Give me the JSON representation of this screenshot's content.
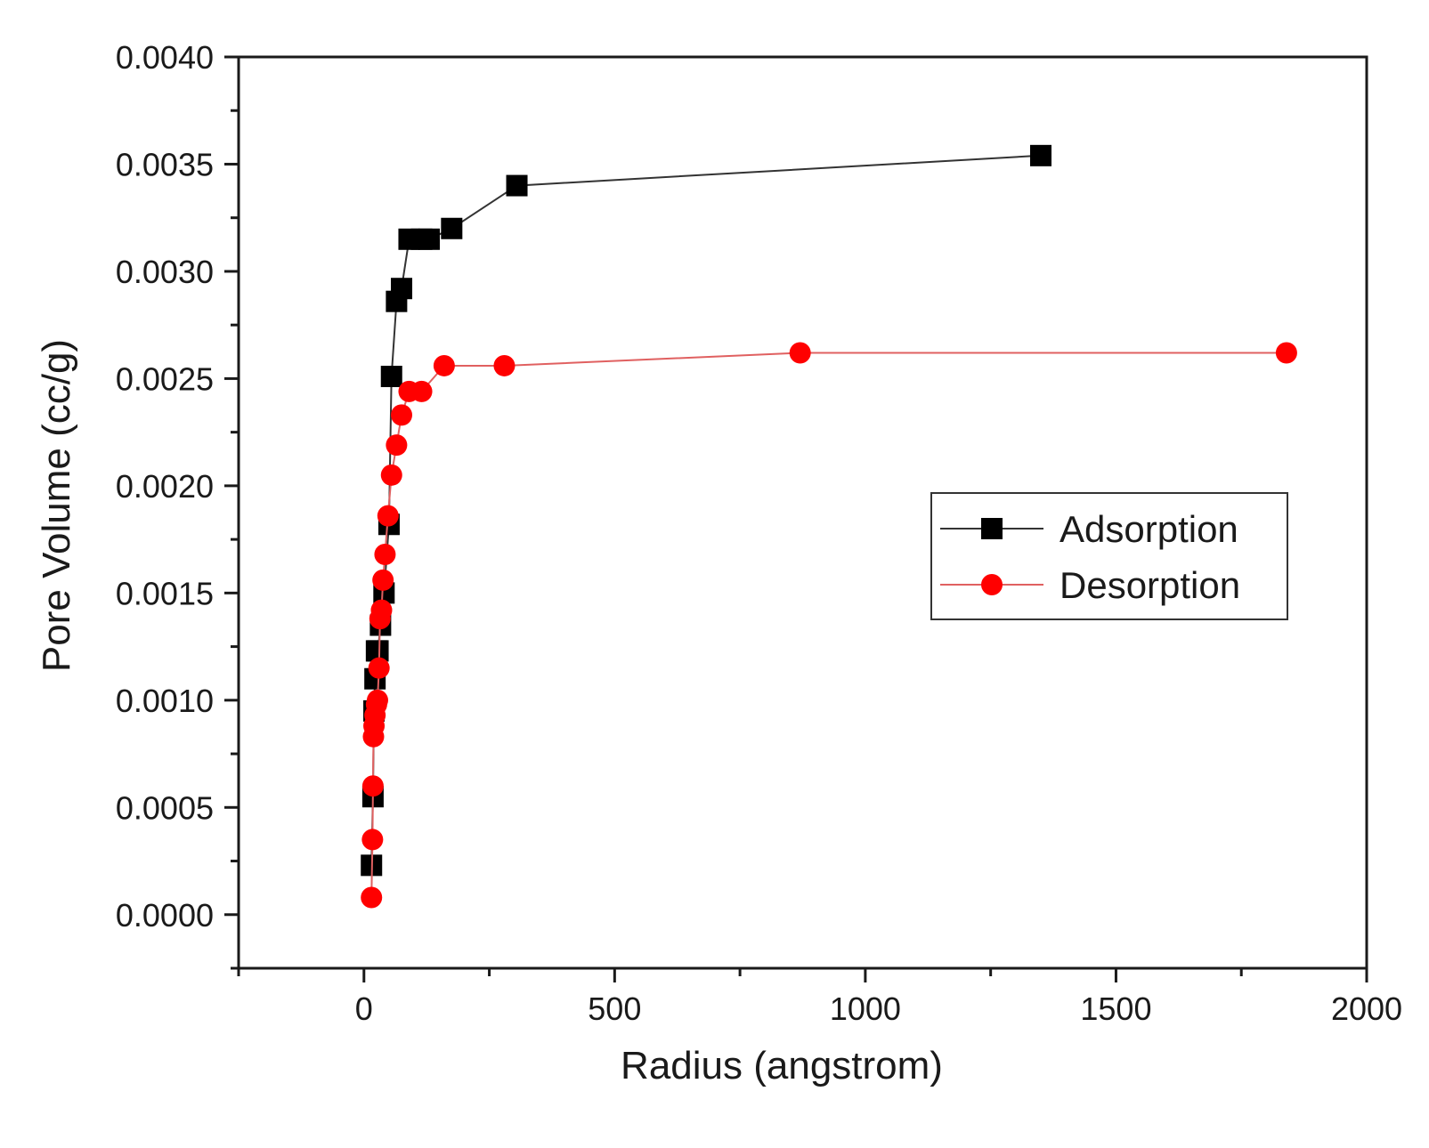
{
  "chart_data": {
    "type": "scatter",
    "xlabel": "Radius (angstrom)",
    "ylabel": "Pore Volume (cc/g)",
    "xlim": [
      -250,
      2000
    ],
    "ylim": [
      -0.00025,
      0.004
    ],
    "x_ticks": [
      0,
      500,
      1000,
      1500,
      2000
    ],
    "x_tick_labels": [
      "0",
      "500",
      "1000",
      "1500",
      "2000"
    ],
    "y_ticks": [
      0.0,
      0.0005,
      0.001,
      0.0015,
      0.002,
      0.0025,
      0.003,
      0.0035,
      0.004
    ],
    "y_tick_labels": [
      "0.0000",
      "0.0005",
      "0.0010",
      "0.0015",
      "0.0020",
      "0.0025",
      "0.0030",
      "0.0035",
      "0.0040"
    ],
    "grid": false,
    "legend_position": "right",
    "series": [
      {
        "name": "Adsorption",
        "marker": "square",
        "color": "#000000",
        "line_color": "#333333",
        "x": [
          15,
          18,
          20,
          22,
          25,
          28,
          33,
          40,
          50,
          55,
          65,
          75,
          90,
          115,
          130,
          175,
          305,
          1350
        ],
        "y": [
          0.00023,
          0.00055,
          0.00095,
          0.0011,
          0.00123,
          0.00123,
          0.00135,
          0.0015,
          0.00182,
          0.00251,
          0.00286,
          0.00292,
          0.00315,
          0.00315,
          0.00315,
          0.0032,
          0.0034,
          0.00354
        ]
      },
      {
        "name": "Desorption",
        "marker": "circle",
        "color": "#ff0000",
        "line_color": "#e06060",
        "x": [
          15,
          17,
          18,
          19,
          20,
          22,
          25,
          27,
          30,
          32,
          35,
          38,
          42,
          48,
          55,
          65,
          75,
          90,
          115,
          160,
          280,
          870,
          1840
        ],
        "y": [
          8e-05,
          0.00035,
          0.0006,
          0.00083,
          0.00088,
          0.00093,
          0.00098,
          0.001,
          0.00115,
          0.00138,
          0.00142,
          0.00156,
          0.00168,
          0.00186,
          0.00205,
          0.00219,
          0.00233,
          0.00244,
          0.00244,
          0.00256,
          0.00256,
          0.00262,
          0.00262
        ]
      }
    ]
  }
}
